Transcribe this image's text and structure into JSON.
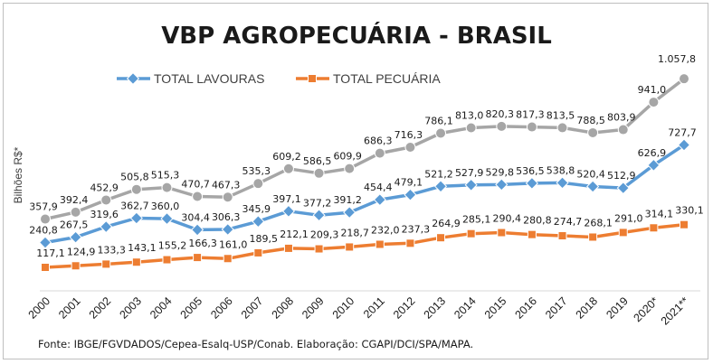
{
  "chart_data": {
    "type": "line",
    "title": "VBP AGROPECUÁRIA - BRASIL",
    "ylabel": "Bilhões R$*",
    "categories": [
      "2000",
      "2001",
      "2002",
      "2003",
      "2004",
      "2005",
      "2006",
      "2007",
      "2008",
      "2009",
      "2010",
      "2011",
      "2012",
      "2013",
      "2014",
      "2015",
      "2016",
      "2017",
      "2018",
      "2019",
      "2020*",
      "2021**"
    ],
    "series": [
      {
        "name": "",
        "legend": false,
        "color": "#a6a6a6",
        "marker": "circle",
        "values": [
          357.9,
          392.4,
          452.9,
          505.8,
          515.3,
          470.7,
          467.3,
          535.3,
          609.2,
          586.5,
          609.9,
          686.3,
          716.3,
          786.1,
          813.0,
          820.3,
          817.3,
          813.5,
          788.5,
          803.9,
          941.0,
          1057.8
        ],
        "labels": [
          "357,9",
          "392,4",
          "452,9",
          "505,8",
          "515,3",
          "470,7",
          "467,3",
          "535,3",
          "609,2",
          "586,5",
          "609,9",
          "686,3",
          "716,3",
          "786,1",
          "813,0",
          "820,3",
          "817,3",
          "813,5",
          "788,5",
          "803,9",
          "941,0",
          "1.057,8"
        ]
      },
      {
        "name": "TOTAL LAVOURAS",
        "legend": true,
        "color": "#5b9bd5",
        "marker": "diamond",
        "values": [
          240.8,
          267.5,
          319.6,
          362.7,
          360.0,
          304.4,
          306.3,
          345.9,
          397.1,
          377.2,
          391.2,
          454.4,
          479.1,
          521.2,
          527.9,
          529.8,
          536.5,
          538.8,
          520.4,
          512.9,
          626.9,
          727.7
        ],
        "labels": [
          "240,8",
          "267,5",
          "319,6",
          "362,7",
          "360,0",
          "304,4",
          "306,3",
          "345,9",
          "397,1",
          "377,2",
          "391,2",
          "454,4",
          "479,1",
          "521,2",
          "527,9",
          "529,8",
          "536,5",
          "538,8",
          "520,4",
          "512,9",
          "626,9",
          "727,7"
        ]
      },
      {
        "name": "TOTAL PECUÁRIA",
        "legend": true,
        "color": "#ed7d31",
        "marker": "square",
        "values": [
          117.1,
          124.9,
          133.3,
          143.1,
          155.2,
          166.3,
          161.0,
          189.5,
          212.1,
          209.3,
          218.7,
          232.0,
          237.3,
          264.9,
          285.1,
          290.4,
          280.8,
          274.7,
          268.1,
          291.0,
          314.1,
          330.1
        ],
        "labels": [
          "117,1",
          "124,9",
          "133,3",
          "143,1",
          "155,2",
          "166,3",
          "161,0",
          "189,5",
          "212,1",
          "209,3",
          "218,7",
          "232,0",
          "237,3",
          "264,9",
          "285,1",
          "290,4",
          "280,8",
          "274,7",
          "268,1",
          "291,0",
          "314,1",
          "330,1"
        ]
      }
    ],
    "ylim": [
      0,
      1150
    ],
    "grid": false,
    "legend_position": "top"
  },
  "source_note": "Fonte: IBGE/FGVDADOS/Cepea-Esalq-USP/Conab. Elaboração: CGAPI/DCI/SPA/MAPA."
}
